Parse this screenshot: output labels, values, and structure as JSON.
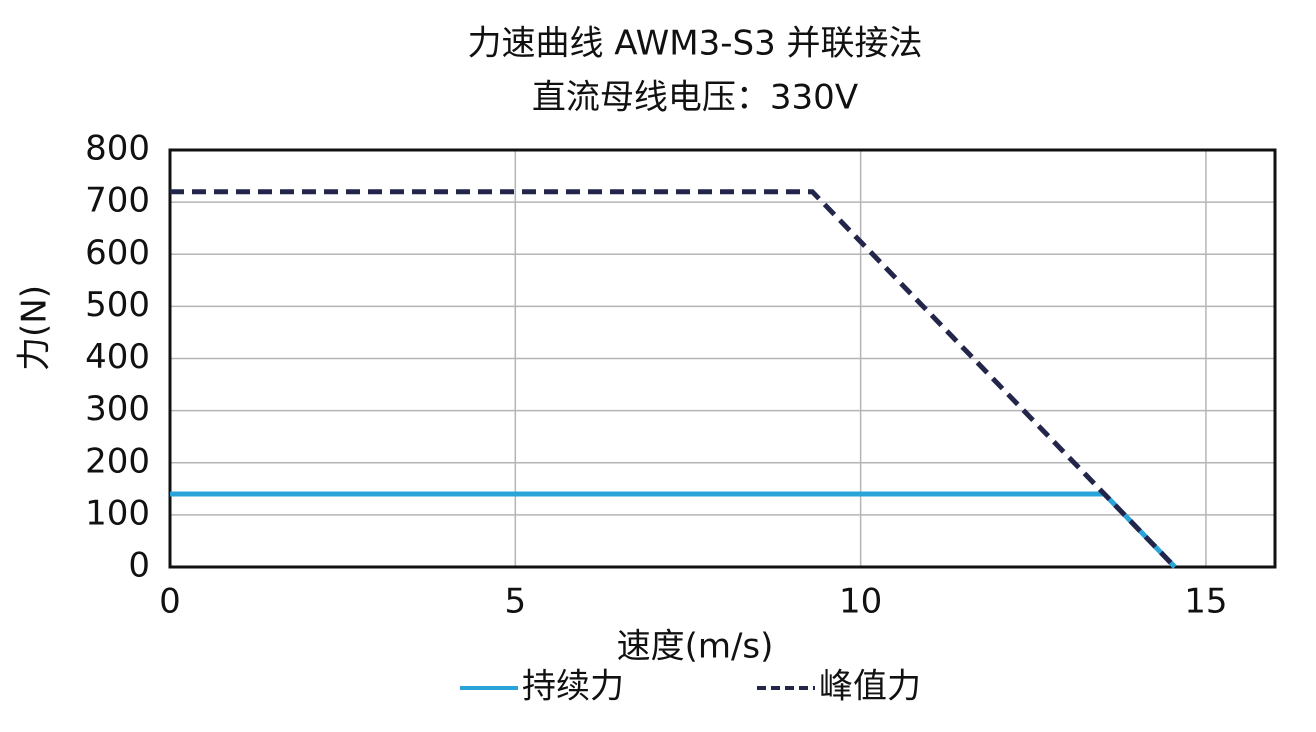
{
  "chart_data": {
    "type": "line",
    "title": "力速曲线 AWM3-S3 并联接法",
    "subtitle": "直流母线电压：330V",
    "x_label": "速度(m/s)",
    "y_label": "力(N)",
    "xlim": [
      0,
      16
    ],
    "xticks": [
      0,
      5,
      10,
      15
    ],
    "ylim": [
      0,
      800
    ],
    "yticks": [
      0,
      100,
      200,
      300,
      400,
      500,
      600,
      700,
      800
    ],
    "grid": true,
    "legend": "bottom",
    "series": [
      {
        "name": "持续力",
        "color": "#29a3d8",
        "dash": false,
        "x": [
          0,
          13.53,
          14.55
        ],
        "values": [
          140,
          140,
          0
        ]
      },
      {
        "name": "峰值力",
        "color": "#23264a",
        "dash": true,
        "x": [
          0,
          9.3,
          14.55
        ],
        "values": [
          720,
          720,
          0
        ]
      }
    ]
  }
}
